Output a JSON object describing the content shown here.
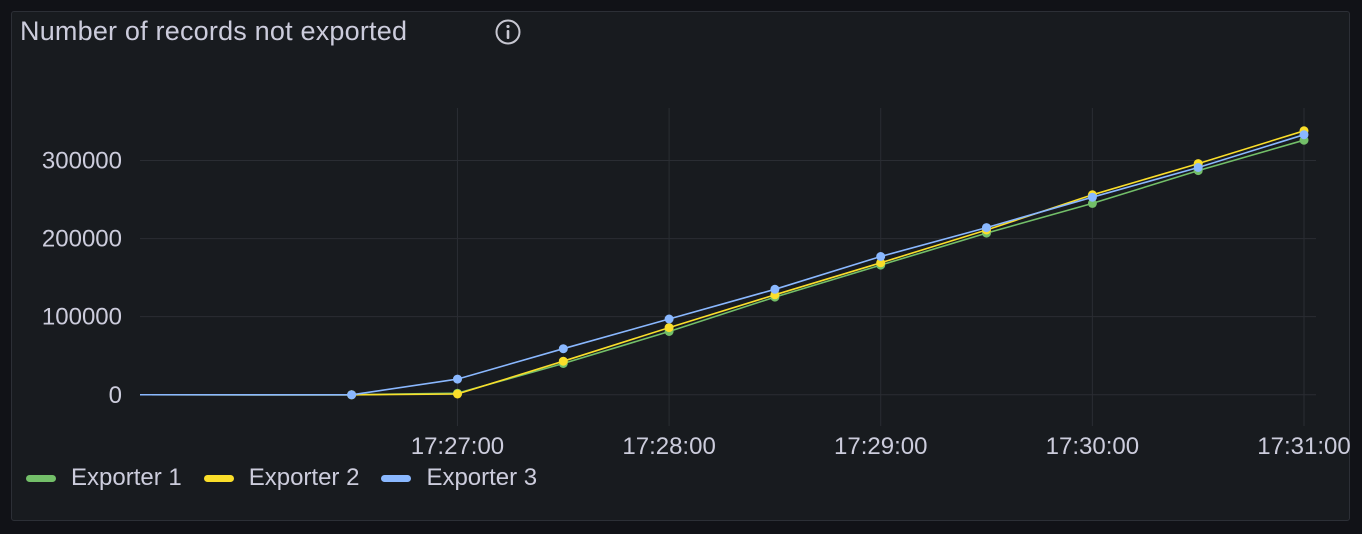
{
  "panel": {
    "title": "Number of records not exported",
    "info_icon": "info-circle-icon"
  },
  "colors": {
    "background": "#111217",
    "panel": "#181b1f",
    "grid": "#2a2d33",
    "text": "#ccccdc"
  },
  "chart_data": {
    "type": "line",
    "title": "Number of records not exported",
    "x_ticks": [
      "17:27:00",
      "17:28:00",
      "17:29:00",
      "17:30:00",
      "17:31:00"
    ],
    "y_ticks": [
      0,
      100000,
      200000,
      300000
    ],
    "x_range": [
      "17:25:30",
      "17:31:00"
    ],
    "ylim": [
      -40000,
      380000
    ],
    "grid": true,
    "legend_position": "bottom-left",
    "x": [
      "17:26:30",
      "17:27:00",
      "17:27:30",
      "17:28:00",
      "17:28:30",
      "17:29:00",
      "17:29:30",
      "17:30:00",
      "17:30:30",
      "17:31:00"
    ],
    "series": [
      {
        "name": "Exporter 1",
        "color": "#73bf69",
        "values": [
          0,
          2000,
          40000,
          81000,
          125000,
          166000,
          207000,
          245000,
          287000,
          326000
        ]
      },
      {
        "name": "Exporter 2",
        "color": "#fade2a",
        "values": [
          0,
          1000,
          43000,
          86000,
          128000,
          169000,
          211000,
          256000,
          296000,
          338000
        ]
      },
      {
        "name": "Exporter 3",
        "color": "#8ab8ff",
        "values": [
          0,
          20000,
          59000,
          97000,
          135000,
          177000,
          214000,
          253000,
          291000,
          333000
        ]
      }
    ]
  }
}
